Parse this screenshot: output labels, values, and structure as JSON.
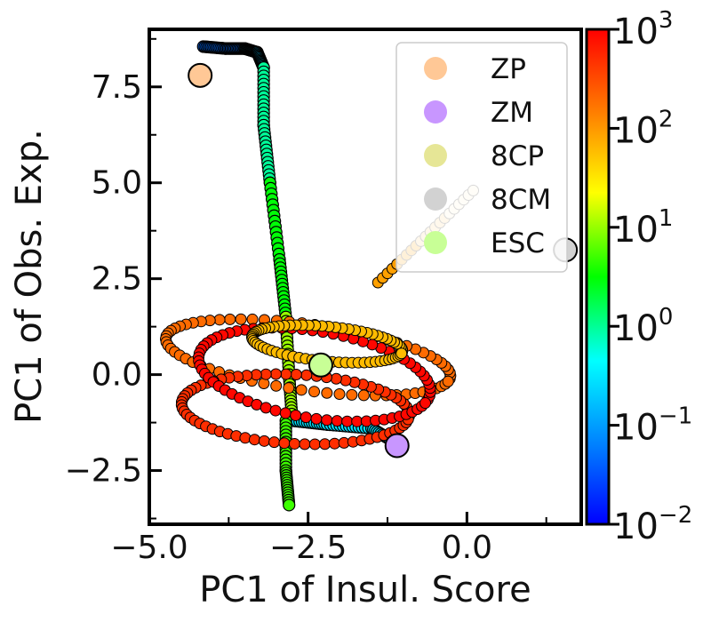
{
  "chart_data": {
    "type": "scatter",
    "xlabel": "PC1 of Insul. Score",
    "ylabel": "PC1 of Obs. Exp.",
    "xlim": [
      -5.0,
      1.8
    ],
    "ylim": [
      -3.9,
      9.0
    ],
    "x_ticks": [
      -5.0,
      -2.5,
      0.0
    ],
    "x_tick_labels": [
      "−5.0",
      "−2.5",
      "0.0"
    ],
    "y_ticks": [
      -2.5,
      0.0,
      2.5,
      5.0,
      7.5
    ],
    "y_tick_labels": [
      "−2.5",
      "0.0",
      "2.5",
      "5.0",
      "7.5"
    ],
    "grid": false,
    "legend_position": "top-right",
    "colorbar": {
      "scale": "log",
      "range": [
        0.01,
        1000
      ],
      "colormap": [
        "#0000ff",
        "#0080ff",
        "#00ffff",
        "#00ff00",
        "#ffff00",
        "#ff8000",
        "#ff0000"
      ],
      "tick_values": [
        0.01,
        0.1,
        1,
        10,
        100,
        1000
      ],
      "tick_base": [
        "10",
        "10",
        "10",
        "10",
        "10",
        "10"
      ],
      "tick_exponents": [
        "−2",
        "−1",
        "0",
        "1",
        "2",
        "3"
      ]
    },
    "reference_points": [
      {
        "name": "ZP",
        "color": "#ffc896",
        "x": -4.2,
        "y": 7.8
      },
      {
        "name": "ZM",
        "color": "#c896ff",
        "x": -1.1,
        "y": -1.85
      },
      {
        "name": "8CP",
        "color": "#e6e696",
        "x": -2.3,
        "y": 0.25
      },
      {
        "name": "8CM",
        "color": "#d2d2d2",
        "x": 1.55,
        "y": 3.25
      },
      {
        "name": "ESC",
        "color": "#c8ff96",
        "x": -2.3,
        "y": 0.25
      }
    ],
    "trajectory_segments": [
      {
        "color_time": 0.05,
        "points": [
          [
            -4.15,
            8.55
          ],
          [
            -3.8,
            8.5
          ],
          [
            -3.5,
            8.5
          ]
        ]
      },
      {
        "color_time": 0.2,
        "points": [
          [
            -3.5,
            8.5
          ],
          [
            -3.3,
            8.4
          ],
          [
            -3.2,
            8.0
          ]
        ]
      },
      {
        "color_time": 1.0,
        "points": [
          [
            -3.2,
            8.0
          ],
          [
            -3.2,
            6.5
          ],
          [
            -3.1,
            5.0
          ]
        ]
      },
      {
        "color_time": 3.0,
        "points": [
          [
            -3.1,
            5.0
          ],
          [
            -2.95,
            3.0
          ],
          [
            -2.85,
            1.5
          ]
        ]
      },
      {
        "color_time": 10.0,
        "points": [
          [
            -2.85,
            1.5
          ],
          [
            -2.8,
            0.0
          ],
          [
            -2.75,
            -1.2
          ]
        ]
      },
      {
        "color_time": 0.3,
        "points": [
          [
            -2.75,
            -1.2
          ],
          [
            -2.2,
            -1.3
          ],
          [
            -1.5,
            -1.4
          ],
          [
            -1.1,
            -1.8
          ]
        ]
      },
      {
        "color_time": 5.0,
        "points": [
          [
            -2.85,
            -1.2
          ],
          [
            -2.85,
            -2.5
          ],
          [
            -2.8,
            -3.4
          ]
        ]
      }
    ]
  }
}
